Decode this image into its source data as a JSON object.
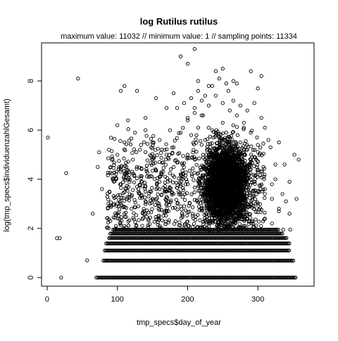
{
  "chart_data": {
    "type": "scatter",
    "title": "log Rutilus rutilus",
    "subtitle": "maximum value: 11032  //  minimum value: 1  // sampling points: 11334",
    "xlabel": "tmp_specs$day_of_year",
    "ylabel": "log(tmp_specs$individuenzahlGesamt)",
    "xlim": [
      -8,
      380
    ],
    "ylim": [
      -0.35,
      9.55
    ],
    "x_ticks": [
      0,
      100,
      200,
      300
    ],
    "y_ticks": [
      0,
      2,
      4,
      6,
      8
    ],
    "x_tick_labels": [
      "0",
      "100",
      "200",
      "300"
    ],
    "y_tick_labels": [
      "0",
      "2",
      "4",
      "6",
      "8"
    ],
    "grid": false,
    "legend": "none",
    "marker": "open-circle",
    "colors": {
      "points": "#000000",
      "background": "#ffffff",
      "axes": "#000000"
    },
    "sampling_points": 11334,
    "x": [
      1,
      14,
      18,
      20,
      27,
      44,
      57,
      65,
      70,
      72,
      74,
      78,
      85,
      88,
      95,
      100,
      105,
      110,
      115,
      122,
      128,
      135,
      140,
      148,
      155,
      160,
      170,
      180,
      190,
      200,
      210,
      215,
      222,
      230,
      240,
      250,
      258,
      265,
      270,
      280,
      290,
      300,
      305,
      310,
      318,
      325,
      330,
      338,
      345,
      352,
      355,
      358,
      100,
      110,
      125,
      140,
      150,
      160,
      175,
      185,
      195,
      205,
      215,
      225,
      235,
      245,
      255,
      265,
      275,
      285,
      295,
      305,
      315,
      325,
      335,
      345,
      95,
      105,
      115,
      130,
      145,
      160,
      170,
      180,
      190,
      200,
      210,
      220,
      230,
      240,
      250,
      260,
      270,
      280,
      290,
      300,
      310,
      320,
      330,
      100,
      120,
      140,
      160,
      180,
      200,
      220,
      240,
      260,
      280,
      300,
      320,
      340,
      110,
      130,
      150,
      170,
      190,
      210,
      230,
      250,
      270,
      290,
      310,
      330,
      90,
      100,
      120,
      140,
      160,
      180,
      200,
      220,
      240,
      260,
      280,
      300,
      310,
      320,
      96,
      106,
      116,
      126,
      136,
      146,
      156,
      166,
      176,
      186,
      196,
      206,
      216,
      226,
      236,
      246,
      256,
      266,
      276,
      286,
      296,
      306,
      316,
      326,
      336,
      346,
      200,
      210,
      220,
      230,
      240,
      250,
      260,
      270,
      280,
      290,
      300,
      205,
      215,
      225,
      235,
      245,
      255,
      265,
      275,
      285,
      295
    ],
    "y": [
      5.7,
      1.6,
      1.6,
      0,
      4.25,
      8.1,
      0.7,
      2.6,
      0,
      4.5,
      5.1,
      3.6,
      0.7,
      5.2,
      3.0,
      5.0,
      7.6,
      7.8,
      6.4,
      4.8,
      7.6,
      3.9,
      6.0,
      5.3,
      7.3,
      4.1,
      6.9,
      7.5,
      9.0,
      8.7,
      9.3,
      8.0,
      6.6,
      7.8,
      8.4,
      8.5,
      7.6,
      8.0,
      7.9,
      6.1,
      8.4,
      7.7,
      8.2,
      6.1,
      5.3,
      4.0,
      5.5,
      4.6,
      3.9,
      5.0,
      3.2,
      4.8,
      6.2,
      5.5,
      5.9,
      6.5,
      4.8,
      5.6,
      6.0,
      6.9,
      7.1,
      7.3,
      7.6,
      7.4,
      7.8,
      8.1,
      7.9,
      7.2,
      7.0,
      6.8,
      7.1,
      6.5,
      5.6,
      4.6,
      3.4,
      2.6,
      3.9,
      4.4,
      4.0,
      3.6,
      4.1,
      4.7,
      5.0,
      5.3,
      5.9,
      6.4,
      6.7,
      6.6,
      6.1,
      5.8,
      6.3,
      5.5,
      5.2,
      5.0,
      4.8,
      4.3,
      3.6,
      3.2,
      2.8,
      3.0,
      3.3,
      3.5,
      3.9,
      4.5,
      5.0,
      5.4,
      5.9,
      5.7,
      5.1,
      4.4,
      3.8,
      3.1,
      2.6,
      2.9,
      3.2,
      3.5,
      4.2,
      4.8,
      5.0,
      4.9,
      4.6,
      4.0,
      3.4,
      2.7,
      2.3,
      2.6,
      2.8,
      2.6,
      2.9,
      3.4,
      3.8,
      4.4,
      4.5,
      4.1,
      3.7,
      3.0,
      2.4,
      2.2,
      1.95,
      1.95,
      1.95,
      1.95,
      1.95,
      1.95,
      1.95,
      1.95,
      1.95,
      1.95,
      1.95,
      1.95,
      1.95,
      1.95,
      1.95,
      1.95,
      1.95,
      1.95,
      1.95,
      1.95,
      1.95,
      1.95,
      1.95,
      1.95,
      1.95,
      1.95,
      6.5,
      6.9,
      7.2,
      7.0,
      7.4,
      7.1,
      6.8,
      6.6,
      6.3,
      5.9,
      5.4,
      5.8,
      6.1,
      5.6,
      6.0,
      5.7,
      5.9,
      6.2,
      5.5,
      5.2,
      4.9
    ],
    "dense_bands": [
      {
        "y": 0.0,
        "x_range": [
          72,
          355
        ]
      },
      {
        "y": 0.69,
        "x_range": [
          80,
          352
        ]
      },
      {
        "y": 1.1,
        "x_range": [
          82,
          346
        ]
      },
      {
        "y": 1.39,
        "x_range": [
          84,
          345
        ]
      },
      {
        "y": 1.61,
        "x_range": [
          88,
          342
        ]
      },
      {
        "y": 1.79,
        "x_range": [
          90,
          336
        ]
      },
      {
        "y": 1.95,
        "x_range": [
          94,
          330
        ]
      }
    ],
    "dense_cloud": {
      "x_range": [
        180,
        325
      ],
      "y_range": [
        1.0,
        7.5
      ],
      "peak_x": 255,
      "peak_y": 3.8
    }
  }
}
